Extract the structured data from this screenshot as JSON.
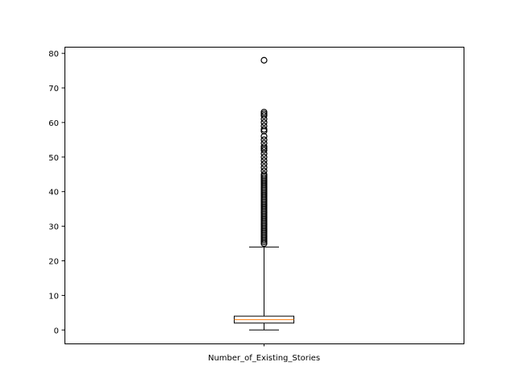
{
  "chart_data": {
    "type": "box",
    "categories": [
      "Number_of_Existing_Stories"
    ],
    "box": {
      "whisker_low": 0,
      "q1": 2,
      "median": 3,
      "q3": 4,
      "whisker_high": 24
    },
    "outliers": [
      25,
      25.5,
      26,
      26.5,
      27,
      27.5,
      28,
      28.5,
      29,
      29.5,
      30,
      30.5,
      31,
      31.5,
      32,
      32.5,
      33,
      33.5,
      34,
      34.5,
      35,
      35.5,
      36,
      36.5,
      37,
      37.5,
      38,
      38.5,
      39,
      39.5,
      40,
      40.5,
      41,
      41.5,
      42,
      42.5,
      43,
      43.5,
      44,
      44.5,
      45,
      46,
      47,
      48,
      49,
      50,
      51,
      52,
      52.5,
      53,
      54,
      55,
      56,
      57.5,
      58,
      59,
      60,
      61,
      62,
      62.5,
      63,
      78
    ],
    "ylim": [
      -3.9,
      81.9
    ],
    "yticks": [
      0,
      10,
      20,
      30,
      40,
      50,
      60,
      70,
      80
    ],
    "xlabel": "",
    "ylabel": "",
    "colors": {
      "median": "#ff7f0e",
      "stroke": "#000000"
    }
  }
}
